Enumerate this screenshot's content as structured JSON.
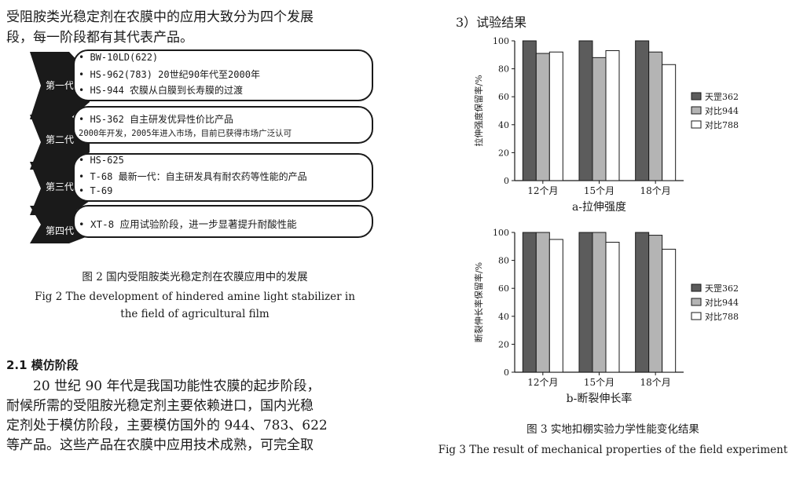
{
  "left": {
    "intro_lines": [
      "受阻胺类光稳定剂在农膜中的应用大致分为四个发展",
      "段，每一阶段都有其代表产品。"
    ],
    "generations": [
      {
        "label": "第一代",
        "lines": [
          "• BW-10LD(622)",
          "• HS-962(783)  20世纪90年代至2000年",
          "• HS-944        农膜从白膜到长寿膜的过渡"
        ]
      },
      {
        "label": "第二代",
        "lines": [
          "• HS-362  自主研发优异性价比产品",
          "  2000年开发，2005年进入市场，目前已获得市场广泛认可"
        ]
      },
      {
        "label": "第三代",
        "lines": [
          "• HS-625",
          "• T-68 最新一代：自主研发具有耐农药等性能的产品",
          "• T-69"
        ]
      },
      {
        "label": "第四代",
        "lines": [
          "• XT-8  应用试验阶段，进一步显著提升耐酸性能"
        ]
      }
    ],
    "fig2_caption_cn": "图 2   国内受阻胺类光稳定剂在农膜应用中的发展",
    "fig2_caption_en_1": "Fig 2   The development of hindered amine light stabilizer in",
    "fig2_caption_en_2": "the field of agricultural film",
    "section_title": "2.1   模仿阶段",
    "body_lines": [
      "　　20 世纪 90 年代是我国功能性农膜的起步阶段，",
      "耐候所需的受阻胺光稳定剂主要依赖进口，国内光稳",
      "定剂处于模仿阶段，主要模仿国外的 944、783、622",
      "等产品。这些产品在农膜中应用技术成熟，可完全取"
    ]
  },
  "right": {
    "heading": "3）试验结果",
    "fig3_caption_cn": "图 3   实地扣棚实验力学性能变化结果",
    "fig3_caption_en": "Fig 3   The result of mechanical properties of the field experiment"
  },
  "chart_data": [
    {
      "type": "bar",
      "title": "a-拉伸强度",
      "ylabel": "拉伸强度保留率/%",
      "categories": [
        "12个月",
        "15个月",
        "18个月"
      ],
      "ylim": [
        0,
        100
      ],
      "yticks": [
        0,
        20,
        40,
        60,
        80,
        100
      ],
      "series": [
        {
          "name": "天罡362",
          "color": "#5c5c5c",
          "values": [
            100,
            100,
            100
          ]
        },
        {
          "name": "对比944",
          "color": "#b4b4b4",
          "values": [
            91,
            88,
            92
          ]
        },
        {
          "name": "对比788",
          "color": "#ffffff",
          "values": [
            92,
            93,
            83
          ]
        }
      ],
      "legend": "right"
    },
    {
      "type": "bar",
      "title": "b-断裂伸长率",
      "ylabel": "断裂伸长率保留率/%",
      "categories": [
        "12个月",
        "15个月",
        "18个月"
      ],
      "ylim": [
        0,
        100
      ],
      "yticks": [
        0,
        20,
        40,
        60,
        80,
        100
      ],
      "series": [
        {
          "name": "天罡362",
          "color": "#5c5c5c",
          "values": [
            100,
            100,
            100
          ]
        },
        {
          "name": "对比944",
          "color": "#b4b4b4",
          "values": [
            100,
            100,
            98
          ]
        },
        {
          "name": "对比788",
          "color": "#ffffff",
          "values": [
            95,
            93,
            88
          ]
        }
      ],
      "legend": "right"
    }
  ]
}
